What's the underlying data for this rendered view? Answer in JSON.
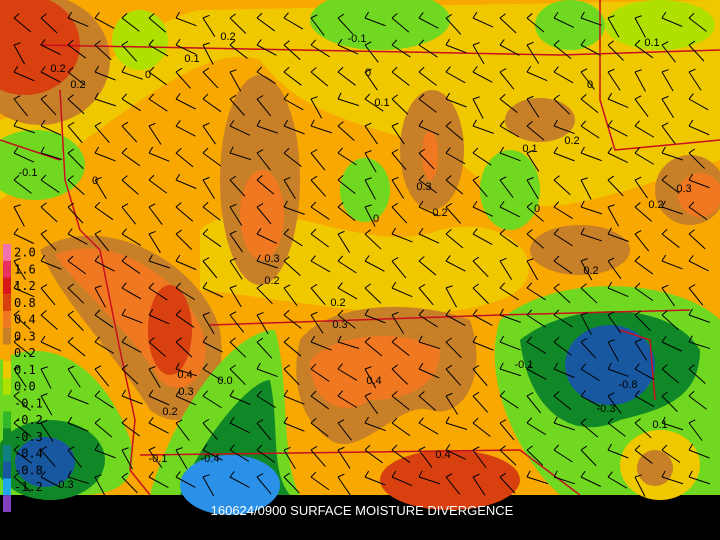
{
  "title": "160624/0900 SURFACE MOISTURE DIVERGENCE",
  "legend": [
    {
      "label": "2.0",
      "color": "#f070b0"
    },
    {
      "label": "1.6",
      "color": "#e83060"
    },
    {
      "label": "1.2",
      "color": "#d81818"
    },
    {
      "label": "0.8",
      "color": "#d84010"
    },
    {
      "label": "0.4",
      "color": "#f07820"
    },
    {
      "label": "0.3",
      "color": "#c88028"
    },
    {
      "label": "0.2",
      "color": "#f8a800"
    },
    {
      "label": "0.1",
      "color": "#f0c800"
    },
    {
      "label": "0.0",
      "color": "#b0e000"
    },
    {
      "label": "-0.1",
      "color": "#70d820"
    },
    {
      "label": "-0.2",
      "color": "#30b828"
    },
    {
      "label": "-0.3",
      "color": "#108828"
    },
    {
      "label": "-0.4",
      "color": "#108080"
    },
    {
      "label": "-0.8",
      "color": "#1858a0"
    },
    {
      "label": "-1.2",
      "color": "#20a8e8"
    },
    {
      "label": "-1.6",
      "color": "#8040c0"
    }
  ],
  "contour_labels": [
    "0.2",
    "0.2",
    "0.2",
    "0.1",
    "0",
    "-0.1",
    "0",
    "0.1",
    "0.1",
    "0",
    "0.1",
    "0.2",
    "-0.1",
    "0",
    "0.3",
    "0.2",
    "0",
    "0",
    "0.2",
    "0.3",
    "0.3",
    "0.2",
    "0.2",
    "0.2",
    "0.3",
    "0.4",
    "0.3",
    "0.0",
    "0.4",
    "-0.1",
    "-0.8",
    "-0.3",
    "0.2",
    "0.1",
    "-0.1",
    "-0.4",
    "0.4",
    "0.3"
  ]
}
